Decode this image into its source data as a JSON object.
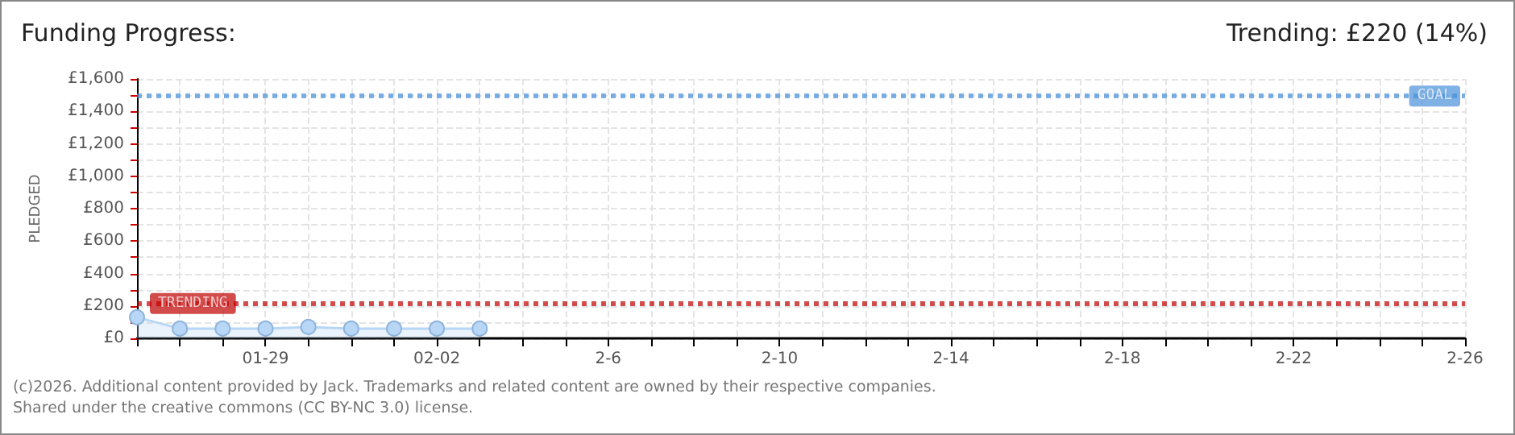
{
  "chart_data": {
    "type": "area",
    "title": "Funding Progress:",
    "subtitle": "Trending: £220 (14%)",
    "ylabel": "PLEDGED",
    "x": [
      "--01-26",
      "--01-27",
      "--01-28",
      "--01-29",
      "--01-30",
      "--01-31",
      "--02-01",
      "--02-02",
      "--02-03"
    ],
    "series": [
      {
        "color": "#b8d6f5",
        "values": [
          130,
          60,
          60,
          60,
          70,
          60,
          60,
          60,
          60
        ]
      }
    ],
    "marker": "circle",
    "grid": true,
    "xlim": [
      "--01-26",
      "--02-26"
    ],
    "xticks": [
      {
        "value": "--01-26",
        "label": null
      },
      {
        "value": "--01-27",
        "label": null
      },
      {
        "value": "--01-28",
        "label": null
      },
      {
        "value": "--01-29",
        "label": "01-29"
      },
      {
        "value": "--01-30",
        "label": null
      },
      {
        "value": "--01-31",
        "label": null
      },
      {
        "value": "--02-01",
        "label": null
      },
      {
        "value": "--02-02",
        "label": "02-02"
      },
      {
        "value": "--02-03",
        "label": null
      },
      {
        "value": "--02-04",
        "label": null
      },
      {
        "value": "--02-05",
        "label": null
      },
      {
        "value": "--02-06",
        "label": "2-6"
      },
      {
        "value": "--02-07",
        "label": null
      },
      {
        "value": "--02-08",
        "label": null
      },
      {
        "value": "--02-09",
        "label": null
      },
      {
        "value": "--02-10",
        "label": "2-10"
      },
      {
        "value": "--02-11",
        "label": null
      },
      {
        "value": "--02-12",
        "label": null
      },
      {
        "value": "--02-13",
        "label": null
      },
      {
        "value": "--02-14",
        "label": "2-14"
      },
      {
        "value": "--02-15",
        "label": null
      },
      {
        "value": "--02-16",
        "label": null
      },
      {
        "value": "--02-17",
        "label": null
      },
      {
        "value": "--02-18",
        "label": "2-18"
      },
      {
        "value": "--02-19",
        "label": null
      },
      {
        "value": "--02-20",
        "label": null
      },
      {
        "value": "--02-21",
        "label": null
      },
      {
        "value": "--02-22",
        "label": "2-22"
      },
      {
        "value": "--02-23",
        "label": null
      },
      {
        "value": "--02-24",
        "label": null
      },
      {
        "value": "--02-25",
        "label": null
      },
      {
        "value": "--02-26",
        "label": "2-26"
      }
    ],
    "ylim": [
      0,
      1600
    ],
    "yticks": [
      {
        "value": 0,
        "label": "£0"
      },
      {
        "value": 100,
        "label": null
      },
      {
        "value": 200,
        "label": "£200"
      },
      {
        "value": 300,
        "label": null
      },
      {
        "value": 400,
        "label": "£400"
      },
      {
        "value": 500,
        "label": null
      },
      {
        "value": 600,
        "label": "£600"
      },
      {
        "value": 700,
        "label": null
      },
      {
        "value": 800,
        "label": "£800"
      },
      {
        "value": 900,
        "label": null
      },
      {
        "value": 1000,
        "label": "£1,000"
      },
      {
        "value": 1100,
        "label": null
      },
      {
        "value": 1200,
        "label": "£1,200"
      },
      {
        "value": 1300,
        "label": null
      },
      {
        "value": 1400,
        "label": "£1,400"
      },
      {
        "value": 1500,
        "label": null
      },
      {
        "value": 1600,
        "label": "£1,600"
      }
    ],
    "ref_lines": [
      {
        "axis": "y",
        "value": 1500,
        "label": "GOAL",
        "color": "#4a90d9",
        "line_style": "dotted"
      },
      {
        "axis": "y",
        "value": 220,
        "label": "TRENDING",
        "color": "#c00000",
        "line_style": "dotted"
      }
    ],
    "annotations": [
      "(c)2026. Additional content provided by Jack. Trademarks and related content are owned by their respective companies.",
      "Shared under the creative commons (CC BY-NC 3.0) license."
    ]
  }
}
